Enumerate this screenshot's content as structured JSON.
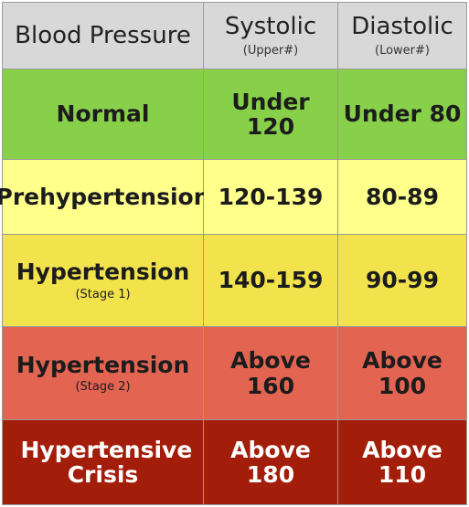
{
  "header": {
    "category": "Blood Pressure",
    "systolic": "Systolic",
    "systolic_sub": "(Upper#)",
    "diastolic": "Diastolic",
    "diastolic_sub": "(Lower#)"
  },
  "rows": [
    {
      "category": "Normal",
      "category_sub": "",
      "systolic": "Under 120",
      "diastolic": "Under 80",
      "color": "#88d04a"
    },
    {
      "category": "Prehypertension",
      "category_sub": "",
      "systolic": "120-139",
      "diastolic": "80-89",
      "color": "#ffff8c"
    },
    {
      "category": "Hypertension",
      "category_sub": "(Stage 1)",
      "systolic": "140-159",
      "diastolic": "90-99",
      "color": "#f2e34c"
    },
    {
      "category": "Hypertension",
      "category_sub": "(Stage 2)",
      "systolic": "Above 160",
      "diastolic": "Above 100",
      "color": "#e46452"
    },
    {
      "category": "Hypertensive Crisis",
      "category_sub": "",
      "systolic": "Above 180",
      "diastolic": "Above 110",
      "color": "#a31e0a"
    }
  ]
}
